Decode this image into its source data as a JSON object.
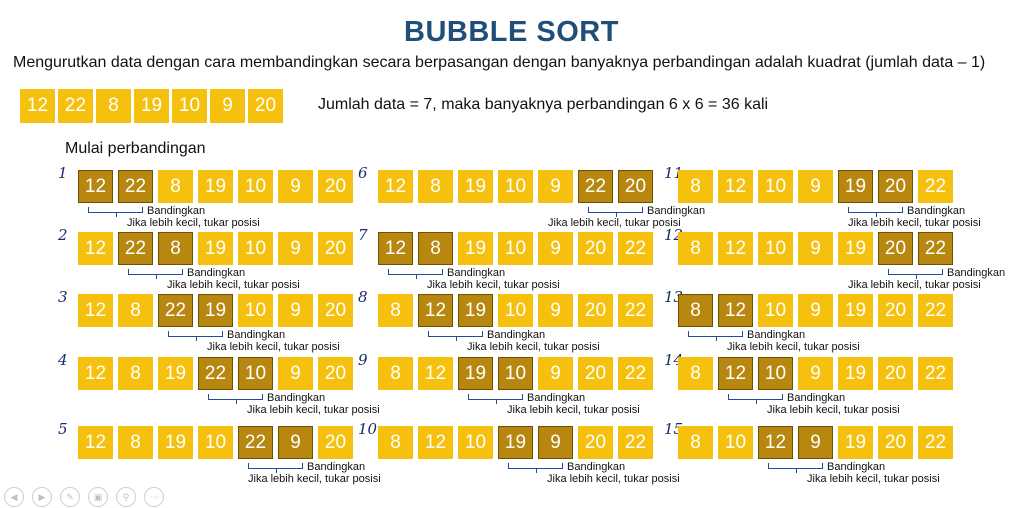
{
  "title": "BUBBLE SORT",
  "subtitle": "Mengurutkan data dengan cara membandingkan secara berpasangan dengan banyaknya perbandingan adalah kuadrat (jumlah data – 1)",
  "initial": [
    "12",
    "22",
    "8",
    "19",
    "10",
    "9",
    "20"
  ],
  "count_text": "Jumlah data = 7, maka banyaknya perbandingan 6 x 6 = 36 kali",
  "start_label": "Mulai perbandingan",
  "compare_label": "Bandingkan",
  "swap_label": "Jika lebih kecil, tukar posisi",
  "colors": {
    "cell": "#f6c10e",
    "compared": "#b8870f",
    "title": "#1f4e79",
    "bracket": "#1f4e9a"
  },
  "steps": [
    {
      "num": "1",
      "values": [
        "12",
        "22",
        "8",
        "19",
        "10",
        "9",
        "20"
      ],
      "compare": [
        0,
        1
      ]
    },
    {
      "num": "2",
      "values": [
        "12",
        "22",
        "8",
        "19",
        "10",
        "9",
        "20"
      ],
      "compare": [
        1,
        2
      ]
    },
    {
      "num": "3",
      "values": [
        "12",
        "8",
        "22",
        "19",
        "10",
        "9",
        "20"
      ],
      "compare": [
        2,
        3
      ]
    },
    {
      "num": "4",
      "values": [
        "12",
        "8",
        "19",
        "22",
        "10",
        "9",
        "20"
      ],
      "compare": [
        3,
        4
      ]
    },
    {
      "num": "5",
      "values": [
        "12",
        "8",
        "19",
        "10",
        "22",
        "9",
        "20"
      ],
      "compare": [
        4,
        5
      ]
    },
    {
      "num": "6",
      "values": [
        "12",
        "8",
        "19",
        "10",
        "9",
        "22",
        "20"
      ],
      "compare": [
        5,
        6
      ]
    },
    {
      "num": "7",
      "values": [
        "12",
        "8",
        "19",
        "10",
        "9",
        "20",
        "22"
      ],
      "compare": [
        0,
        1
      ]
    },
    {
      "num": "8",
      "values": [
        "8",
        "12",
        "19",
        "10",
        "9",
        "20",
        "22"
      ],
      "compare": [
        1,
        2
      ]
    },
    {
      "num": "9",
      "values": [
        "8",
        "12",
        "19",
        "10",
        "9",
        "20",
        "22"
      ],
      "compare": [
        2,
        3
      ]
    },
    {
      "num": "10",
      "values": [
        "8",
        "12",
        "10",
        "19",
        "9",
        "20",
        "22"
      ],
      "compare": [
        3,
        4
      ]
    },
    {
      "num": "11",
      "values": [
        "8",
        "12",
        "10",
        "9",
        "19",
        "20",
        "22"
      ],
      "compare": [
        4,
        5
      ]
    },
    {
      "num": "12",
      "values": [
        "8",
        "12",
        "10",
        "9",
        "19",
        "20",
        "22"
      ],
      "compare": [
        5,
        6
      ]
    },
    {
      "num": "13",
      "values": [
        "8",
        "12",
        "10",
        "9",
        "19",
        "20",
        "22"
      ],
      "compare": [
        0,
        1
      ]
    },
    {
      "num": "14",
      "values": [
        "8",
        "12",
        "10",
        "9",
        "19",
        "20",
        "22"
      ],
      "compare": [
        1,
        2
      ]
    },
    {
      "num": "15",
      "values": [
        "8",
        "10",
        "12",
        "9",
        "19",
        "20",
        "22"
      ],
      "compare": [
        2,
        3
      ]
    }
  ],
  "nav_icons": [
    "prev-icon",
    "next-icon",
    "pen-icon",
    "slides-icon",
    "zoom-icon",
    "more-icon"
  ]
}
